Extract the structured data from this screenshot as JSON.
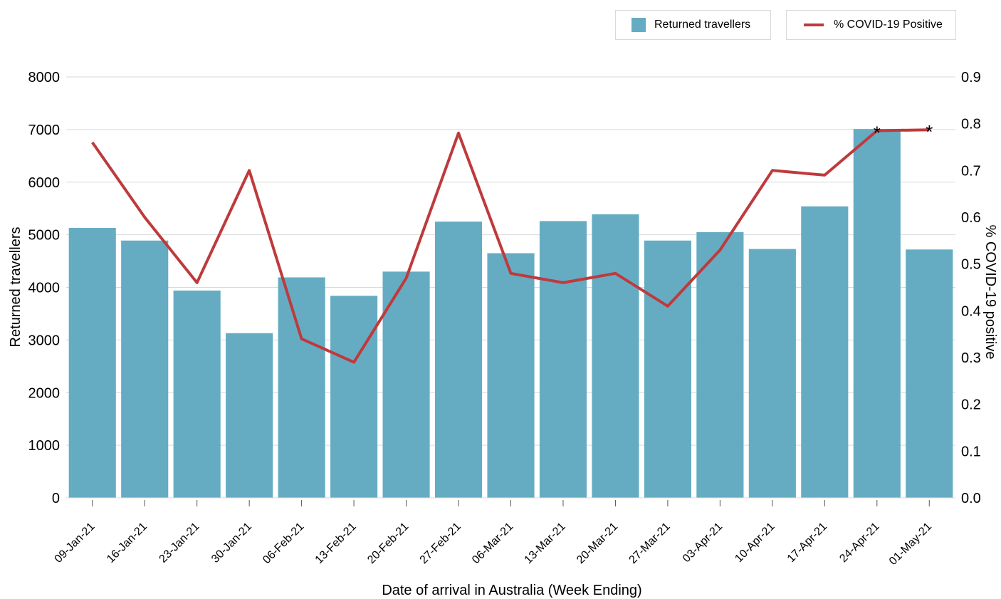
{
  "chart_data": {
    "type": "bar+line",
    "categories": [
      "09-Jan-21",
      "16-Jan-21",
      "23-Jan-21",
      "30-Jan-21",
      "06-Feb-21",
      "13-Feb-21",
      "20-Feb-21",
      "27-Feb-21",
      "06-Mar-21",
      "13-Mar-21",
      "20-Mar-21",
      "27-Mar-21",
      "03-Apr-21",
      "10-Apr-21",
      "17-Apr-21",
      "24-Apr-21",
      "01-May-21"
    ],
    "series": [
      {
        "name": "Returned travellers",
        "type": "bar",
        "axis": "left",
        "color": "#65acc3",
        "values": [
          5130,
          4890,
          3940,
          3130,
          4190,
          3840,
          4300,
          5250,
          4650,
          5260,
          5390,
          4890,
          5050,
          4730,
          5540,
          7010,
          4720
        ]
      },
      {
        "name": "% COVID-19 Positive",
        "type": "line",
        "axis": "right",
        "color": "#be3a3c",
        "values": [
          0.76,
          0.6,
          0.46,
          0.7,
          0.34,
          0.29,
          0.47,
          0.78,
          0.48,
          0.46,
          0.48,
          0.41,
          0.53,
          0.7,
          0.69,
          0.785,
          0.787
        ]
      }
    ],
    "annotations": [
      {
        "category": "24-Apr-21",
        "text": "*"
      },
      {
        "category": "01-May-21",
        "text": "*"
      }
    ],
    "xlabel": "Date of arrival in Australia (Week Ending)",
    "ylabel": "Returned travellers",
    "y2label": "% COVID-19 positive",
    "ylim": [
      0,
      8000
    ],
    "y2lim": [
      0,
      0.9
    ],
    "yticks": [
      "0",
      "1000",
      "2000",
      "3000",
      "4000",
      "5000",
      "6000",
      "7000",
      "8000"
    ],
    "y2ticks": [
      "0.0",
      "0.1",
      "0.2",
      "0.3",
      "0.4",
      "0.5",
      "0.6",
      "0.7",
      "0.8",
      "0.9"
    ],
    "grid": true,
    "legend_position": "top-right"
  },
  "legend": {
    "bar_label": "Returned travellers",
    "line_label": "% COVID-19 Positive"
  }
}
